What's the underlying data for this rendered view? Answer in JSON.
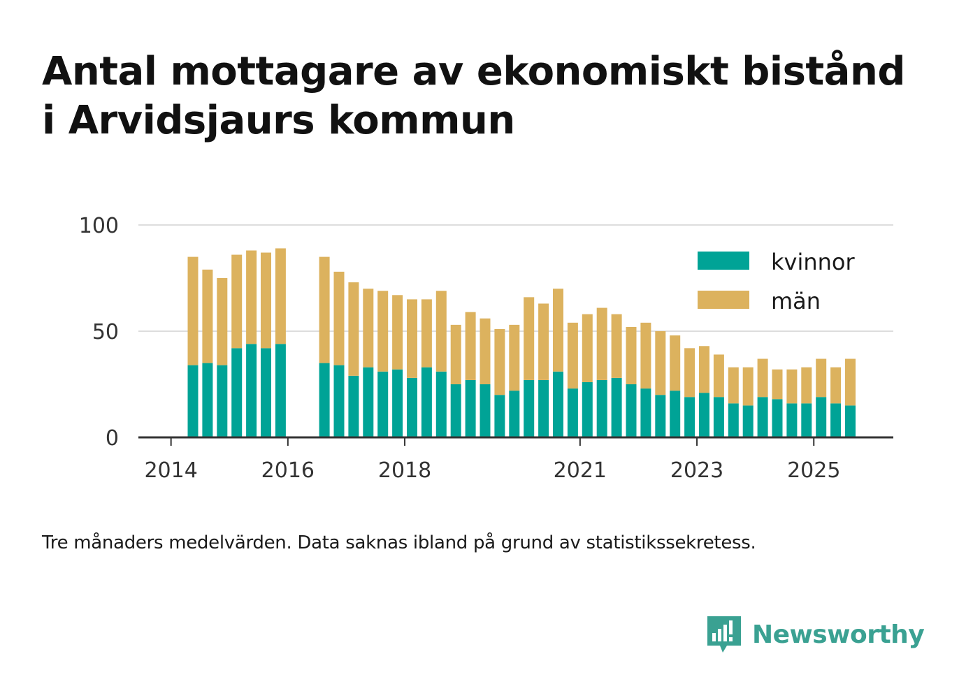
{
  "title_lines": [
    "Antal mottagare av ekonomiskt bistånd",
    "i Arvidsjaurs kommun"
  ],
  "caption": "Tre månaders medelvärden. Data saknas ibland på grund av statistikssekretess.",
  "brand": {
    "name": "Newsworthy",
    "icon": "newsworthy-logo-icon"
  },
  "colors": {
    "kvinnor": "#00a396",
    "man": "#dcb25e",
    "grid": "#dddddd",
    "axis": "#333333"
  },
  "chart_data": {
    "type": "bar",
    "stacked": true,
    "title": "Antal mottagare av ekonomiskt bistånd i Arvidsjaurs kommun",
    "ylim": [
      0,
      100
    ],
    "yticks": [
      0,
      50,
      100
    ],
    "xticks": [
      "2014",
      "2016",
      "2018",
      "2021",
      "2023",
      "2025"
    ],
    "legend": {
      "position": "top-right",
      "items": [
        "kvinnor",
        "män"
      ]
    },
    "grid": true,
    "periods": [
      "2014-Q2",
      "2014-Q3",
      "2014-Q4",
      "2015-Q1",
      "2015-Q2",
      "2015-Q3",
      "2015-Q4",
      "2016-Q1",
      "2016-Q2",
      "2016-Q3",
      "2016-Q4",
      "2017-Q1",
      "2017-Q2",
      "2017-Q3",
      "2017-Q4",
      "2018-Q1",
      "2018-Q2",
      "2018-Q3",
      "2018-Q4",
      "2019-Q1",
      "2019-Q2",
      "2019-Q3",
      "2019-Q4",
      "2020-Q1",
      "2020-Q2",
      "2020-Q3",
      "2020-Q4",
      "2021-Q1",
      "2021-Q2",
      "2021-Q3",
      "2021-Q4",
      "2022-Q1",
      "2022-Q2",
      "2022-Q3",
      "2022-Q4",
      "2023-Q1",
      "2023-Q2",
      "2023-Q3",
      "2023-Q4",
      "2024-Q1",
      "2024-Q2",
      "2024-Q3",
      "2024-Q4",
      "2025-Q1",
      "2025-Q2",
      "2025-Q3"
    ],
    "series": [
      {
        "name": "kvinnor",
        "values": [
          34,
          35,
          34,
          42,
          44,
          42,
          44,
          null,
          null,
          35,
          34,
          29,
          33,
          31,
          32,
          28,
          33,
          31,
          25,
          27,
          25,
          20,
          22,
          27,
          27,
          31,
          23,
          26,
          27,
          28,
          25,
          23,
          20,
          22,
          19,
          21,
          19,
          16,
          15,
          19,
          18,
          16,
          16,
          19,
          16,
          15
        ]
      },
      {
        "name": "män",
        "values": [
          51,
          44,
          41,
          44,
          44,
          45,
          45,
          null,
          null,
          50,
          44,
          44,
          37,
          38,
          35,
          37,
          32,
          38,
          28,
          32,
          31,
          31,
          31,
          39,
          36,
          39,
          31,
          32,
          34,
          30,
          27,
          31,
          30,
          26,
          23,
          22,
          20,
          17,
          18,
          18,
          14,
          16,
          17,
          18,
          17,
          22
        ]
      }
    ]
  }
}
